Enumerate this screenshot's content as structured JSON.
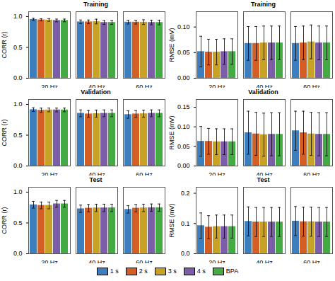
{
  "chart_data": [
    {
      "type": "bar",
      "title": "Training",
      "ylabel": "CORR (r)",
      "categories": [
        "20 Hz",
        "40 Hz",
        "60 Hz"
      ],
      "series": [
        {
          "name": "1 s",
          "color": "#3d7ebf",
          "values": [
            0.955,
            0.915,
            0.91
          ],
          "errors": [
            0.018,
            0.03,
            0.03
          ]
        },
        {
          "name": "2 s",
          "color": "#d45f25",
          "values": [
            0.948,
            0.915,
            0.91
          ],
          "errors": [
            0.018,
            0.03,
            0.032
          ]
        },
        {
          "name": "3 s",
          "color": "#c8a227",
          "values": [
            0.945,
            0.92,
            0.91
          ],
          "errors": [
            0.022,
            0.038,
            0.038
          ]
        },
        {
          "name": "4 s",
          "color": "#7b5ea7",
          "values": [
            0.938,
            0.905,
            0.905
          ],
          "errors": [
            0.022,
            0.032,
            0.038
          ]
        },
        {
          "name": "BPA",
          "color": "#44aa44",
          "values": [
            0.938,
            0.905,
            0.905
          ],
          "errors": [
            0.022,
            0.032,
            0.038
          ]
        }
      ],
      "ylim": [
        0,
        1.08
      ],
      "yticks": [
        {
          "value": 0,
          "label": "0.0"
        },
        {
          "value": 0.5,
          "label": "0.5"
        },
        {
          "value": 1,
          "label": "1.0"
        }
      ],
      "legend": "bottom"
    },
    {
      "type": "bar",
      "title": "Training",
      "ylabel": "RMSE (mV)",
      "categories": [
        "20 Hz",
        "40 Hz",
        "60 Hz"
      ],
      "series": [
        {
          "name": "1 s",
          "color": "#3d7ebf",
          "values": [
            0.052,
            0.068,
            0.068
          ],
          "errors": [
            0.03,
            0.033,
            0.033
          ]
        },
        {
          "name": "2 s",
          "color": "#d45f25",
          "values": [
            0.051,
            0.068,
            0.069
          ],
          "errors": [
            0.025,
            0.033,
            0.033
          ]
        },
        {
          "name": "3 s",
          "color": "#c8a227",
          "values": [
            0.051,
            0.069,
            0.071
          ],
          "errors": [
            0.025,
            0.033,
            0.033
          ]
        },
        {
          "name": "4 s",
          "color": "#7b5ea7",
          "values": [
            0.052,
            0.069,
            0.069
          ],
          "errors": [
            0.025,
            0.033,
            0.033
          ]
        },
        {
          "name": "BPA",
          "color": "#44aa44",
          "values": [
            0.052,
            0.069,
            0.069
          ],
          "errors": [
            0.025,
            0.033,
            0.033
          ]
        }
      ],
      "ylim": [
        0,
        0.13
      ],
      "yticks": [
        {
          "value": 0,
          "label": "0.00"
        },
        {
          "value": 0.05,
          "label": "0.05"
        },
        {
          "value": 0.1,
          "label": "0.10"
        }
      ],
      "legend": "bottom"
    },
    {
      "type": "bar",
      "title": "Validation",
      "ylabel": "CORR (r)",
      "categories": [
        "20 Hz",
        "40 Hz",
        "60 Hz"
      ],
      "series": [
        {
          "name": "1 s",
          "color": "#3d7ebf",
          "values": [
            0.915,
            0.855,
            0.835
          ],
          "errors": [
            0.03,
            0.055,
            0.06
          ]
        },
        {
          "name": "2 s",
          "color": "#d45f25",
          "values": [
            0.905,
            0.845,
            0.845
          ],
          "errors": [
            0.035,
            0.055,
            0.055
          ]
        },
        {
          "name": "3 s",
          "color": "#c8a227",
          "values": [
            0.91,
            0.85,
            0.848
          ],
          "errors": [
            0.03,
            0.058,
            0.058
          ]
        },
        {
          "name": "4 s",
          "color": "#7b5ea7",
          "values": [
            0.91,
            0.855,
            0.855
          ],
          "errors": [
            0.03,
            0.055,
            0.055
          ]
        },
        {
          "name": "BPA",
          "color": "#44aa44",
          "values": [
            0.91,
            0.855,
            0.855
          ],
          "errors": [
            0.03,
            0.055,
            0.055
          ]
        }
      ],
      "ylim": [
        0,
        1.08
      ],
      "yticks": [
        {
          "value": 0,
          "label": "0.0"
        },
        {
          "value": 0.5,
          "label": "0.5"
        },
        {
          "value": 1,
          "label": "1.0"
        }
      ],
      "legend": "bottom"
    },
    {
      "type": "bar",
      "title": "Validation",
      "ylabel": "RMSE (mV)",
      "categories": [
        "20 Hz",
        "40 Hz",
        "60 Hz"
      ],
      "series": [
        {
          "name": "1 s",
          "color": "#3d7ebf",
          "values": [
            0.063,
            0.085,
            0.09
          ],
          "errors": [
            0.038,
            0.055,
            0.05
          ]
        },
        {
          "name": "2 s",
          "color": "#d45f25",
          "values": [
            0.063,
            0.082,
            0.085
          ],
          "errors": [
            0.033,
            0.055,
            0.055
          ]
        },
        {
          "name": "3 s",
          "color": "#c8a227",
          "values": [
            0.062,
            0.08,
            0.082
          ],
          "errors": [
            0.033,
            0.055,
            0.055
          ]
        },
        {
          "name": "4 s",
          "color": "#7b5ea7",
          "values": [
            0.062,
            0.081,
            0.081
          ],
          "errors": [
            0.033,
            0.055,
            0.055
          ]
        },
        {
          "name": "BPA",
          "color": "#44aa44",
          "values": [
            0.062,
            0.081,
            0.081
          ],
          "errors": [
            0.033,
            0.055,
            0.055
          ]
        }
      ],
      "ylim": [
        0,
        0.17
      ],
      "yticks": [
        {
          "value": 0,
          "label": "0.00"
        },
        {
          "value": 0.05,
          "label": "0.05"
        },
        {
          "value": 0.1,
          "label": "0.10"
        },
        {
          "value": 0.15,
          "label": "0.15"
        }
      ],
      "legend": "bottom"
    },
    {
      "type": "bar",
      "title": "Test",
      "ylabel": "CORR (r)",
      "categories": [
        "20 Hz",
        "40 Hz",
        "60 Hz"
      ],
      "series": [
        {
          "name": "1 s",
          "color": "#3d7ebf",
          "values": [
            0.795,
            0.73,
            0.72
          ],
          "errors": [
            0.055,
            0.06,
            0.06
          ]
        },
        {
          "name": "2 s",
          "color": "#d45f25",
          "values": [
            0.785,
            0.74,
            0.74
          ],
          "errors": [
            0.055,
            0.06,
            0.06
          ]
        },
        {
          "name": "3 s",
          "color": "#c8a227",
          "values": [
            0.785,
            0.745,
            0.745
          ],
          "errors": [
            0.055,
            0.06,
            0.06
          ]
        },
        {
          "name": "4 s",
          "color": "#7b5ea7",
          "values": [
            0.81,
            0.745,
            0.748
          ],
          "errors": [
            0.055,
            0.06,
            0.06
          ]
        },
        {
          "name": "BPA",
          "color": "#44aa44",
          "values": [
            0.81,
            0.745,
            0.748
          ],
          "errors": [
            0.055,
            0.06,
            0.06
          ]
        }
      ],
      "ylim": [
        0,
        1.08
      ],
      "yticks": [
        {
          "value": 0,
          "label": "0.0"
        },
        {
          "value": 0.5,
          "label": "0.5"
        },
        {
          "value": 1,
          "label": "1.0"
        }
      ],
      "legend": "bottom"
    },
    {
      "type": "bar",
      "title": "Test",
      "ylabel": "RMSE (mV)",
      "categories": [
        "20 Hz",
        "40 Hz",
        "60 Hz"
      ],
      "series": [
        {
          "name": "1 s",
          "color": "#3d7ebf",
          "values": [
            0.093,
            0.107,
            0.108
          ],
          "errors": [
            0.042,
            0.048,
            0.048
          ]
        },
        {
          "name": "2 s",
          "color": "#d45f25",
          "values": [
            0.088,
            0.105,
            0.106
          ],
          "errors": [
            0.038,
            0.048,
            0.048
          ]
        },
        {
          "name": "3 s",
          "color": "#c8a227",
          "values": [
            0.09,
            0.105,
            0.106
          ],
          "errors": [
            0.038,
            0.048,
            0.048
          ]
        },
        {
          "name": "4 s",
          "color": "#7b5ea7",
          "values": [
            0.09,
            0.105,
            0.105
          ],
          "errors": [
            0.038,
            0.048,
            0.048
          ]
        },
        {
          "name": "BPA",
          "color": "#44aa44",
          "values": [
            0.09,
            0.105,
            0.105
          ],
          "errors": [
            0.038,
            0.048,
            0.048
          ]
        }
      ],
      "ylim": [
        0,
        0.22
      ],
      "yticks": [
        {
          "value": 0,
          "label": "0.0"
        },
        {
          "value": 0.1,
          "label": "0.1"
        },
        {
          "value": 0.2,
          "label": "0.2"
        }
      ],
      "legend": "bottom"
    }
  ]
}
